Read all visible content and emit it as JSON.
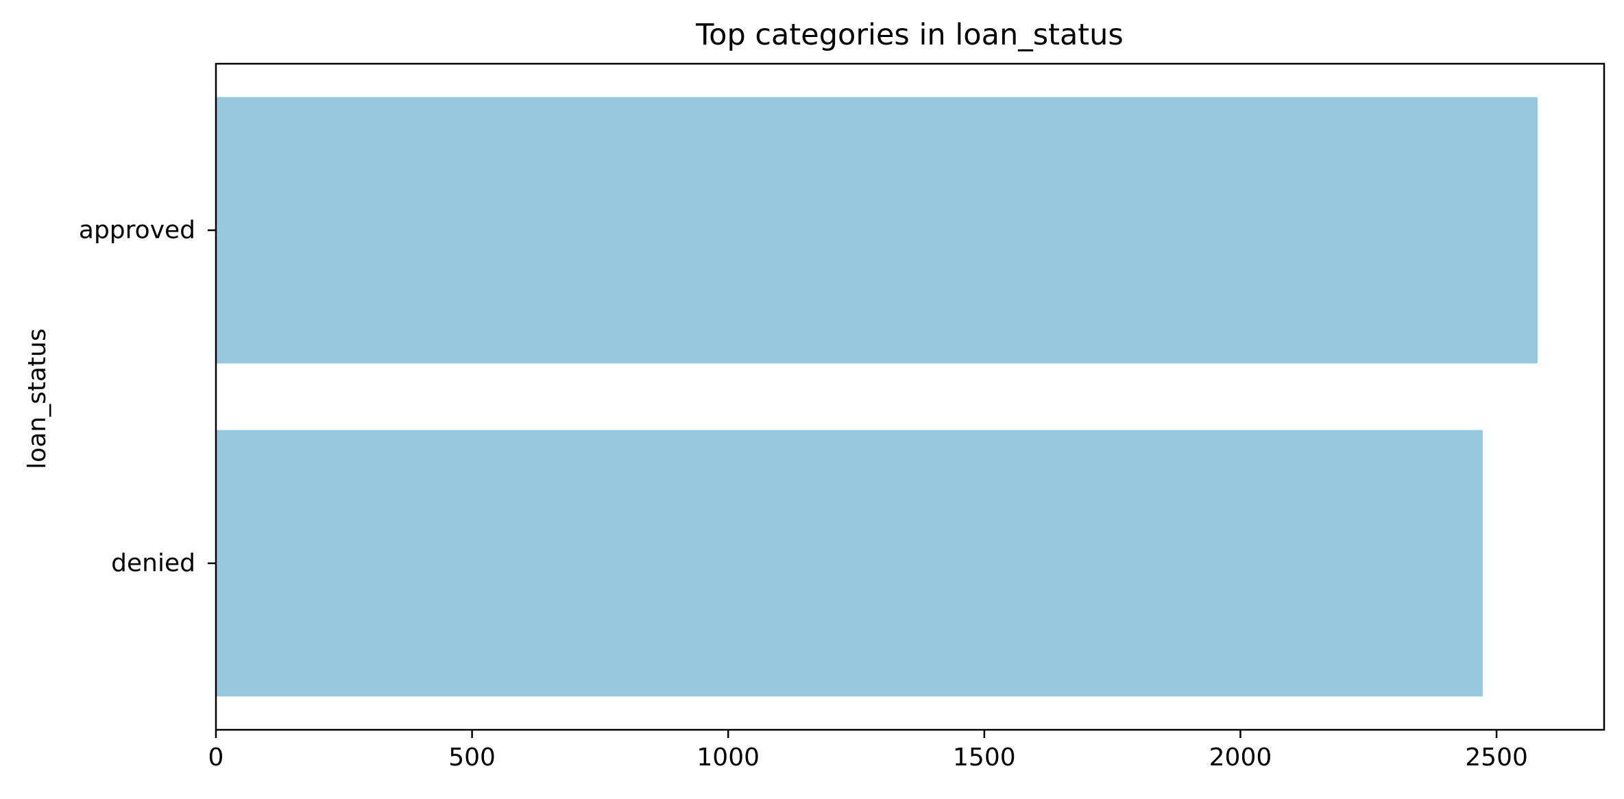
{
  "chart_data": {
    "type": "bar",
    "orientation": "horizontal",
    "title": "Top categories in loan_status",
    "xlabel": "",
    "ylabel": "loan_status",
    "categories": [
      "approved",
      "denied"
    ],
    "values": [
      2580,
      2473
    ],
    "xlim": [
      0,
      2710
    ],
    "xticks": [
      0,
      500,
      1000,
      1500,
      2000,
      2500
    ],
    "grid": false,
    "legend": "none",
    "bar_color": "#96c8dd"
  }
}
